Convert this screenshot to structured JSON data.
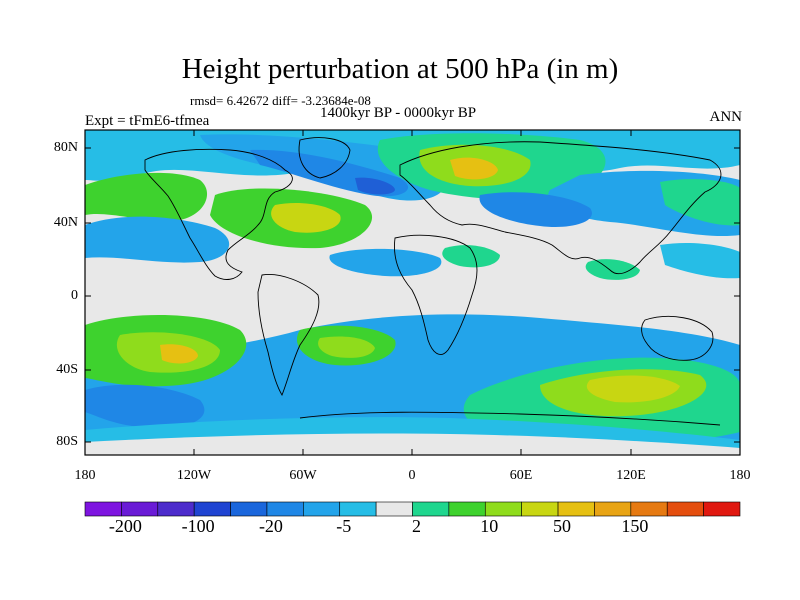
{
  "title": "Height perturbation at 500 hPa (in m)",
  "stats": "rmsd= 6.42672 diff= -3.23684e-08",
  "period": "1400kyr BP - 0000kyr BP",
  "experiment": "Expt = tFmE6-tfmea",
  "season": "ANN",
  "lat_labels": [
    "80N",
    "40N",
    "0",
    "40S",
    "80S"
  ],
  "lon_labels": [
    "180",
    "120W",
    "60W",
    "0",
    "60E",
    "120E",
    "180"
  ],
  "colorbar": {
    "colors": [
      "#7e14e0",
      "#6a1bd6",
      "#4d2ccc",
      "#1f44d2",
      "#1a66dc",
      "#1f87e6",
      "#23a4ea",
      "#26bde6",
      "#e8e8e8",
      "#1fd68e",
      "#3ed22e",
      "#8fdc1c",
      "#c8d612",
      "#e6c012",
      "#e8a414",
      "#e67a12",
      "#e44e0e",
      "#e01810"
    ],
    "labels": [
      "-200",
      "-100",
      "-20",
      "-5",
      "2",
      "10",
      "50",
      "150"
    ]
  },
  "field_colors": {
    "strong_neg": "#1f5fd6",
    "mid_neg": "#1f87e6",
    "weak_neg": "#23a4ea",
    "faint_neg": "#26bde6",
    "neutral": "#e8e8e8",
    "faint_pos": "#1fd68e",
    "weak_pos": "#3ed22e",
    "mid_pos": "#8fdc1c",
    "strong_pos": "#c8d612",
    "peak_pos": "#e6c012"
  }
}
